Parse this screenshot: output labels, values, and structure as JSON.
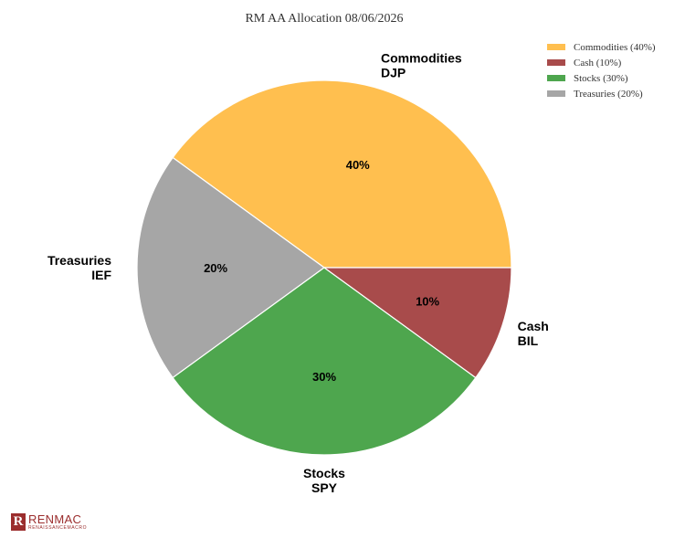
{
  "chart_data": {
    "type": "pie",
    "title": "RM AA Allocation 08/06/2026",
    "legend_position": "top-right",
    "slices": [
      {
        "legend": "Commodities (40%)",
        "name": "Commodities",
        "ticker": "DJP",
        "value": 40,
        "pct_label": "40%",
        "color": "#ffbf4f"
      },
      {
        "legend": "Cash (10%)",
        "name": "Cash",
        "ticker": "BIL",
        "value": 10,
        "pct_label": "10%",
        "color": "#a84b4b"
      },
      {
        "legend": "Stocks (30%)",
        "name": "Stocks",
        "ticker": "SPY",
        "value": 30,
        "pct_label": "30%",
        "color": "#4ea64e"
      },
      {
        "legend": "Treasuries (20%)",
        "name": "Treasuries",
        "ticker": "IEF",
        "value": 20,
        "pct_label": "20%",
        "color": "#a6a6a6"
      }
    ],
    "legend_order": [
      0,
      3,
      2,
      1
    ]
  },
  "brand": {
    "mark": "R",
    "name": "RENMAC",
    "sub": "RENAISSANCEMACRO",
    "color": "#9b2d2d"
  }
}
